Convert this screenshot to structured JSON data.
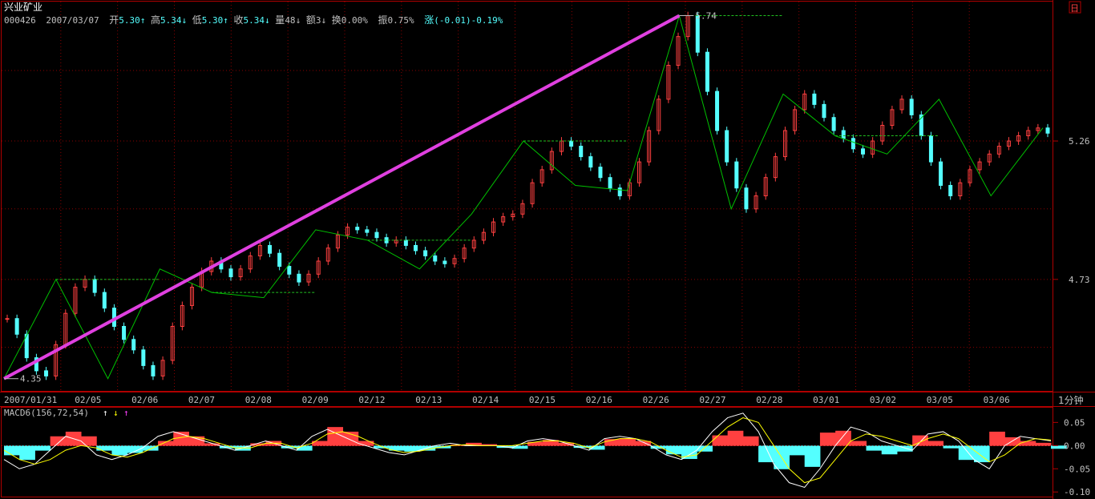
{
  "stock": {
    "name": "兴业矿业",
    "code": "000426",
    "date": "2007/03/07",
    "open_label": "开",
    "open": "5.30",
    "high_label": "高",
    "high": "5.34",
    "low_label": "低",
    "low": "5.30",
    "close_label": "收",
    "close": "5.34",
    "volume_label": "量",
    "volume": "48",
    "amount_label": "额",
    "amount": "3",
    "turnover_label": "换",
    "turnover": "0.00%",
    "amplitude_label": "振",
    "amplitude": "0.75%",
    "change_label": "涨",
    "change": "(-0.01)-0.19%"
  },
  "period_label": "1分钟",
  "corner_button": "日",
  "colors": {
    "background": "#000000",
    "frame": "#b00000",
    "grid": "#8b0000",
    "up_candle": "#ff4040",
    "down_candle": "#54ffff",
    "zigzag": "#00c000",
    "trendline": "#e040e0",
    "level_line": "#20c020",
    "macd_up": "#ff4040",
    "macd_down": "#54ffff",
    "dif_line": "#ffffff",
    "dea_line": "#ffff00",
    "text": "#c0c0c0",
    "title": "#ffffff",
    "arrow_white": "#ffffff",
    "arrow_yellow": "#ffff00",
    "arrow_magenta": "#ff40ff"
  },
  "chart_data": [
    {
      "type": "candlestick",
      "title": "兴业矿业",
      "categories": [
        "2007/01/31",
        "02/05",
        "02/06",
        "02/07",
        "02/08",
        "02/09",
        "02/12",
        "02/13",
        "02/14",
        "02/15",
        "02/16",
        "02/26",
        "02/27",
        "02/28",
        "03/01",
        "03/02",
        "03/05",
        "03/06"
      ],
      "y_ticks": [
        4.73,
        5.26
      ],
      "ylim": [
        4.3,
        5.8
      ],
      "annotations": [
        {
          "text": "4.35",
          "value": 4.35,
          "date": "2007/01/31"
        },
        {
          "text": "5.74",
          "value": 5.74,
          "date": "02/27"
        }
      ],
      "zigzag": [
        {
          "date": "2007/01/31",
          "value": 4.35
        },
        {
          "date": "2007/01/31",
          "value": 4.73
        },
        {
          "date": "02/05",
          "value": 4.35
        },
        {
          "date": "02/06",
          "value": 4.77
        },
        {
          "date": "02/07",
          "value": 4.68
        },
        {
          "date": "02/08",
          "value": 4.66
        },
        {
          "date": "02/09",
          "value": 4.92
        },
        {
          "date": "02/12",
          "value": 4.88
        },
        {
          "date": "02/13",
          "value": 4.77
        },
        {
          "date": "02/14",
          "value": 4.98
        },
        {
          "date": "02/15",
          "value": 5.26
        },
        {
          "date": "02/16",
          "value": 5.09
        },
        {
          "date": "02/26",
          "value": 5.07
        },
        {
          "date": "02/27",
          "value": 5.74
        },
        {
          "date": "02/28",
          "value": 5.0
        },
        {
          "date": "03/01",
          "value": 5.44
        },
        {
          "date": "03/01",
          "value": 5.28
        },
        {
          "date": "03/02",
          "value": 5.21
        },
        {
          "date": "03/02",
          "value": 5.42
        },
        {
          "date": "03/05",
          "value": 5.05
        },
        {
          "date": "03/06",
          "value": 5.31
        }
      ],
      "trendline": {
        "from": {
          "date": "2007/01/31",
          "value": 4.35
        },
        "to": {
          "date": "02/27",
          "value": 5.74
        }
      },
      "close_series": [
        4.58,
        4.52,
        4.43,
        4.38,
        4.36,
        4.48,
        4.6,
        4.7,
        4.73,
        4.68,
        4.62,
        4.55,
        4.5,
        4.46,
        4.4,
        4.36,
        4.42,
        4.55,
        4.63,
        4.7,
        4.76,
        4.8,
        4.77,
        4.74,
        4.77,
        4.82,
        4.86,
        4.83,
        4.78,
        4.75,
        4.72,
        4.75,
        4.8,
        4.85,
        4.9,
        4.93,
        4.92,
        4.91,
        4.89,
        4.87,
        4.88,
        4.86,
        4.84,
        4.82,
        4.8,
        4.79,
        4.81,
        4.85,
        4.88,
        4.91,
        4.95,
        4.97,
        4.98,
        5.02,
        5.1,
        5.15,
        5.22,
        5.26,
        5.24,
        5.2,
        5.16,
        5.12,
        5.08,
        5.05,
        5.1,
        5.18,
        5.3,
        5.42,
        5.55,
        5.66,
        5.74,
        5.6,
        5.45,
        5.3,
        5.18,
        5.08,
        5.0,
        5.05,
        5.12,
        5.2,
        5.3,
        5.38,
        5.44,
        5.4,
        5.35,
        5.3,
        5.27,
        5.23,
        5.21,
        5.26,
        5.32,
        5.38,
        5.42,
        5.36,
        5.28,
        5.18,
        5.09,
        5.05,
        5.1,
        5.15,
        5.18,
        5.21,
        5.24,
        5.26,
        5.28,
        5.3,
        5.31,
        5.29
      ]
    },
    {
      "type": "bar",
      "title": "MACD6(156,72,54)",
      "y_ticks": [
        0.05,
        0.0,
        -0.05,
        -0.1
      ],
      "ylim": [
        -0.11,
        0.08
      ],
      "series": [
        {
          "name": "MACD",
          "values": [
            -0.02,
            -0.03,
            -0.01,
            0.02,
            0.03,
            0.02,
            -0.01,
            -0.02,
            -0.015,
            -0.01,
            0.01,
            0.03,
            0.02,
            0.005,
            -0.005,
            -0.01,
            0.005,
            0.01,
            -0.005,
            -0.01,
            0.01,
            0.04,
            0.03,
            0.01,
            -0.005,
            -0.01,
            -0.012,
            -0.01,
            -0.005,
            0.002,
            0.006,
            0.003,
            -0.004,
            -0.006,
            0.008,
            0.012,
            0.006,
            -0.004,
            -0.008,
            0.014,
            0.016,
            0.01,
            -0.006,
            -0.018,
            -0.028,
            -0.012,
            0.022,
            0.032,
            0.02,
            -0.035,
            -0.05,
            -0.02,
            -0.045,
            0.028,
            0.032,
            0.01,
            -0.01,
            -0.018,
            -0.012,
            0.022,
            0.01,
            -0.005,
            -0.03,
            -0.035,
            0.03,
            0.018,
            0.01,
            0.006,
            -0.006
          ]
        },
        {
          "name": "DIF",
          "values": [
            -0.03,
            -0.05,
            -0.04,
            -0.01,
            0.02,
            0.01,
            -0.02,
            -0.03,
            -0.02,
            -0.005,
            0.02,
            0.03,
            0.02,
            0.01,
            0.0,
            -0.01,
            0.0,
            0.01,
            0.0,
            -0.01,
            0.02,
            0.035,
            0.02,
            0.005,
            -0.005,
            -0.015,
            -0.02,
            -0.01,
            0.0,
            0.005,
            0.0,
            0.0,
            0.0,
            -0.005,
            0.01,
            0.015,
            0.01,
            0.0,
            -0.01,
            0.015,
            0.02,
            0.015,
            0.0,
            -0.02,
            -0.03,
            -0.01,
            0.03,
            0.06,
            0.07,
            0.03,
            -0.04,
            -0.08,
            -0.09,
            -0.05,
            0.0,
            0.04,
            0.03,
            0.01,
            0.0,
            -0.01,
            0.025,
            0.03,
            0.01,
            -0.03,
            -0.05,
            0.0,
            0.02,
            0.015,
            0.01
          ]
        },
        {
          "name": "DEA",
          "values": [
            -0.01,
            -0.03,
            -0.04,
            -0.03,
            -0.01,
            0.0,
            -0.005,
            -0.02,
            -0.025,
            -0.015,
            0.0,
            0.015,
            0.02,
            0.015,
            0.005,
            -0.005,
            -0.005,
            0.005,
            0.005,
            -0.005,
            0.005,
            0.025,
            0.03,
            0.02,
            0.005,
            -0.008,
            -0.015,
            -0.012,
            -0.005,
            0.0,
            0.002,
            0.0,
            0.0,
            0.0,
            0.005,
            0.01,
            0.01,
            0.005,
            -0.005,
            0.008,
            0.015,
            0.015,
            0.008,
            -0.01,
            -0.025,
            -0.02,
            0.01,
            0.04,
            0.06,
            0.05,
            0.0,
            -0.05,
            -0.08,
            -0.07,
            -0.03,
            0.01,
            0.025,
            0.02,
            0.01,
            0.0,
            0.015,
            0.025,
            0.015,
            -0.01,
            -0.035,
            -0.02,
            0.005,
            0.015,
            0.012
          ]
        }
      ]
    }
  ]
}
